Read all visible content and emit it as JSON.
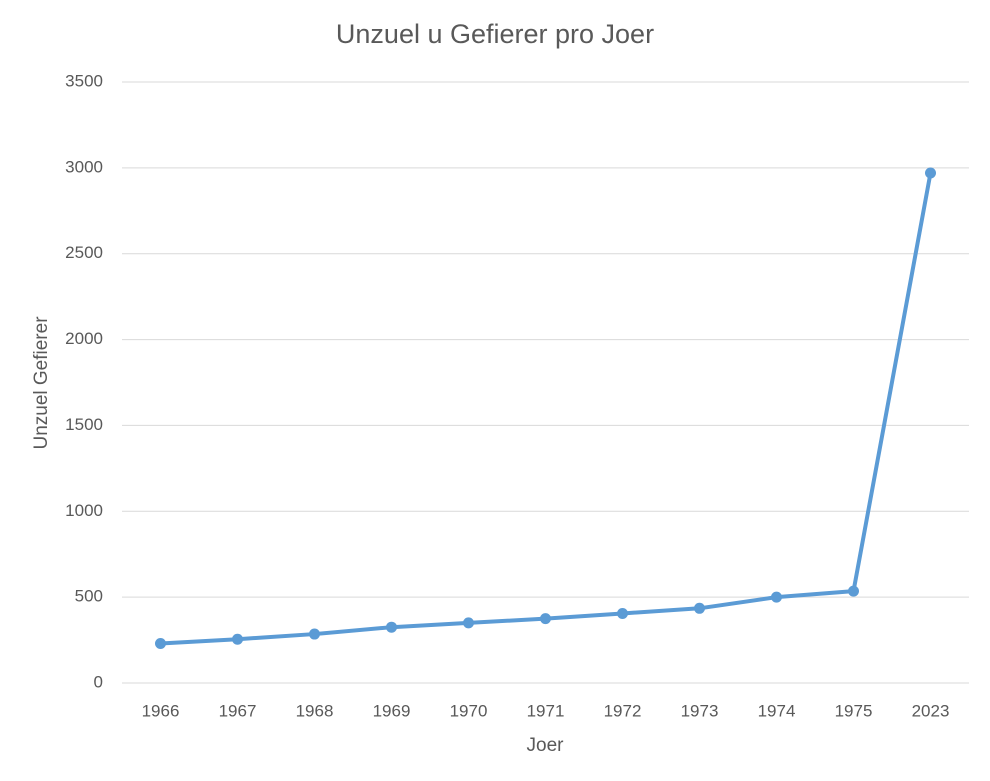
{
  "chart_data": {
    "type": "line",
    "title": "Unzuel u Gefierer pro Joer",
    "x_label": "Joer",
    "y_label": "Unzuel Gefierer",
    "categories": [
      "1966",
      "1967",
      "1968",
      "1969",
      "1970",
      "1971",
      "1972",
      "1973",
      "1974",
      "1975",
      "2023"
    ],
    "values": [
      230,
      255,
      285,
      325,
      350,
      375,
      405,
      435,
      500,
      535,
      2970
    ],
    "color": "#5b9bd5",
    "ylim": [
      0,
      3500
    ],
    "yticks": [
      0,
      500,
      1000,
      1500,
      2000,
      2500,
      3000,
      3500
    ],
    "grid": true
  }
}
